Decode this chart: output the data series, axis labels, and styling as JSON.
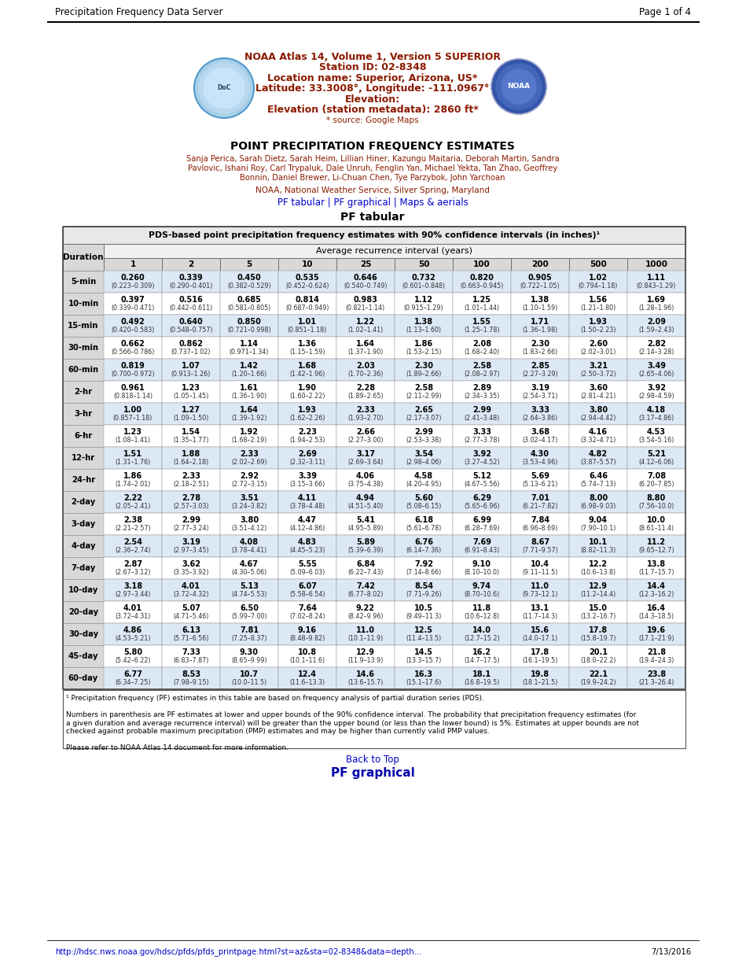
{
  "header_left": "Precipitation Frequency Data Server",
  "header_right": "Page 1 of 4",
  "title_line1": "NOAA Atlas 14, Volume 1, Version 5 SUPERIOR",
  "title_line2": "Station ID: 02-8348",
  "title_line3": "Location name: Superior, Arizona, US*",
  "title_line4": "Latitude: 33.3008°, Longitude: -111.0967°",
  "title_line5": "Elevation:",
  "title_line6": "Elevation (station metadata): 2860 ft*",
  "title_line7": "* source: Google Maps",
  "main_title": "POINT PRECIPITATION FREQUENCY ESTIMATES",
  "authors_line1": "Sanja Perica, Sarah Dietz, Sarah Heim, Lillian Hiner, Kazungu Maitaria, Deborah Martin, Sandra",
  "authors_line2": "Pavlovic, Ishani Roy, Carl Trypaluk, Dale Unruh, Fenglin Yan, Michael Yekta, Tan Zhao, Geoffrey",
  "authors_line3": "Bonnin, Daniel Brewer, Li-Chuan Chen, Tye Parzybok, John Yarchoan",
  "agency": "NOAA, National Weather Service, Silver Spring, Maryland",
  "section_title": "PF tabular",
  "table_title": "PDS-based point precipitation frequency estimates with 90% confidence intervals (in inches)¹",
  "ari_label": "Average recurrence interval (years)",
  "duration_label": "Duration",
  "col_headers": [
    "1",
    "2",
    "5",
    "10",
    "25",
    "50",
    "100",
    "200",
    "500",
    "1000"
  ],
  "duration_labels": [
    "5-min",
    "10-min",
    "15-min",
    "30-min",
    "60-min",
    "2-hr",
    "3-hr",
    "6-hr",
    "12-hr",
    "24-hr",
    "2-day",
    "3-day",
    "4-day",
    "7-day",
    "10-day",
    "20-day",
    "30-day",
    "45-day",
    "60-day"
  ],
  "table_data": [
    [
      "0.260\n(0.223–0.309)",
      "0.339\n(0.290–0.401)",
      "0.450\n(0.382–0.529)",
      "0.535\n(0.452–0.624)",
      "0.646\n(0.540–0.749)",
      "0.732\n(0.601–0.848)",
      "0.820\n(0.663–0.945)",
      "0.905\n(0.722–1.05)",
      "1.02\n(0.794–1.18)",
      "1.11\n(0.843–1.29)"
    ],
    [
      "0.397\n(0.339–0.471)",
      "0.516\n(0.442–0.611)",
      "0.685\n(0.581–0.805)",
      "0.814\n(0.687–0.949)",
      "0.983\n(0.821–1.14)",
      "1.12\n(0.915–1.29)",
      "1.25\n(1.01–1.44)",
      "1.38\n(1.10–1.59)",
      "1.56\n(1.21–1.80)",
      "1.69\n(1.28–1.96)"
    ],
    [
      "0.492\n(0.420–0.583)",
      "0.640\n(0.548–0.757)",
      "0.850\n(0.721–0.998)",
      "1.01\n(0.851–1.18)",
      "1.22\n(1.02–1.41)",
      "1.38\n(1.13–1.60)",
      "1.55\n(1.25–1.78)",
      "1.71\n(1.36–1.98)",
      "1.93\n(1.50–2.23)",
      "2.09\n(1.59–2.43)"
    ],
    [
      "0.662\n(0.566–0.786)",
      "0.862\n(0.737–1.02)",
      "1.14\n(0.971–1.34)",
      "1.36\n(1.15–1.59)",
      "1.64\n(1.37–1.90)",
      "1.86\n(1.53–2.15)",
      "2.08\n(1.68–2.40)",
      "2.30\n(1.83–2.66)",
      "2.60\n(2.02–3.01)",
      "2.82\n(2.14–3.28)"
    ],
    [
      "0.819\n(0.700–0.972)",
      "1.07\n(0.913–1.26)",
      "1.42\n(1.20–1.66)",
      "1.68\n(1.42–1.96)",
      "2.03\n(1.70–2.36)",
      "2.30\n(1.89–2.66)",
      "2.58\n(2.08–2.97)",
      "2.85\n(2.27–3.29)",
      "3.21\n(2.50–3.72)",
      "3.49\n(2.65–4.06)"
    ],
    [
      "0.961\n(0.818–1.14)",
      "1.23\n(1.05–1.45)",
      "1.61\n(1.36–1.90)",
      "1.90\n(1.60–2.22)",
      "2.28\n(1.89–2.65)",
      "2.58\n(2.11–2.99)",
      "2.89\n(2.34–3.35)",
      "3.19\n(2.54–3.71)",
      "3.60\n(2.81–4.21)",
      "3.92\n(2.98–4.59)"
    ],
    [
      "1.00\n(0.857–1.18)",
      "1.27\n(1.09–1.50)",
      "1.64\n(1.39–1.92)",
      "1.93\n(1.62–2.26)",
      "2.33\n(1.93–2.70)",
      "2.65\n(2.17–3.07)",
      "2.99\n(2.41–3.48)",
      "3.33\n(2.64–3.86)",
      "3.80\n(2.94–4.42)",
      "4.18\n(3.17–4.86)"
    ],
    [
      "1.23\n(1.08–1.41)",
      "1.54\n(1.35–1.77)",
      "1.92\n(1.68–2.19)",
      "2.23\n(1.94–2.53)",
      "2.66\n(2.27–3.00)",
      "2.99\n(2.53–3.38)",
      "3.33\n(2.77–3.78)",
      "3.68\n(3.02–4.17)",
      "4.16\n(3.32–4.71)",
      "4.53\n(3.54–5.16)"
    ],
    [
      "1.51\n(1.31–1.76)",
      "1.88\n(1.64–2.18)",
      "2.33\n(2.02–2.69)",
      "2.69\n(2.32–3.11)",
      "3.17\n(2.69–3.64)",
      "3.54\n(2.98–4.06)",
      "3.92\n(3.27–4.52)",
      "4.30\n(3.53–4.96)",
      "4.82\n(3.87–5.57)",
      "5.21\n(4.12–6.06)"
    ],
    [
      "1.86\n(1.74–2.01)",
      "2.33\n(2.18–2.51)",
      "2.92\n(2.72–3.15)",
      "3.39\n(3.15–3.66)",
      "4.06\n(3.75–4.38)",
      "4.58\n(4.20–4.95)",
      "5.12\n(4.67–5.56)",
      "5.69\n(5.13–6.21)",
      "6.46\n(5.74–7.13)",
      "7.08\n(6.20–7.85)"
    ],
    [
      "2.22\n(2.05–2.41)",
      "2.78\n(2.57–3.03)",
      "3.51\n(3.24–3.82)",
      "4.11\n(3.78–4.48)",
      "4.94\n(4.51–5.40)",
      "5.60\n(5.08–6.15)",
      "6.29\n(5.65–6.96)",
      "7.01\n(6.21–7.82)",
      "8.00\n(6.98–9.03)",
      "8.80\n(7.56–10.0)"
    ],
    [
      "2.38\n(2.21–2.57)",
      "2.99\n(2.77–3.24)",
      "3.80\n(3.51–4.12)",
      "4.47\n(4.12–4.86)",
      "5.41\n(4.95–5.89)",
      "6.18\n(5.61–6.78)",
      "6.99\n(6.28–7.69)",
      "7.84\n(6.96–8.69)",
      "9.04\n(7.90–10.1)",
      "10.0\n(8.61–11.4)"
    ],
    [
      "2.54\n(2.36–2.74)",
      "3.19\n(2.97–3.45)",
      "4.08\n(3.78–4.41)",
      "4.83\n(4.45–5.23)",
      "5.89\n(5.39–6.39)",
      "6.76\n(6.14–7.36)",
      "7.69\n(6.91–8.43)",
      "8.67\n(7.71–9.57)",
      "10.1\n(8.82–11.3)",
      "11.2\n(9.65–12.7)"
    ],
    [
      "2.87\n(2.67–3.12)",
      "3.62\n(3.35–3.92)",
      "4.67\n(4.30–5.06)",
      "5.55\n(5.09–6.03)",
      "6.84\n(6.22–7.43)",
      "7.92\n(7.14–8.66)",
      "9.10\n(8.10–10.0)",
      "10.4\n(9.11–11.5)",
      "12.2\n(10.6–13.8)",
      "13.8\n(11.7–15.7)"
    ],
    [
      "3.18\n(2.97–3.44)",
      "4.01\n(3.72–4.32)",
      "5.13\n(4.74–5.53)",
      "6.07\n(5.58–6.54)",
      "7.42\n(6.77–8.02)",
      "8.54\n(7.71–9.26)",
      "9.74\n(8.70–10.6)",
      "11.0\n(9.73–12.1)",
      "12.9\n(11.2–14.4)",
      "14.4\n(12.3–16.2)"
    ],
    [
      "4.01\n(3.72–4.31)",
      "5.07\n(4.71–5.46)",
      "6.50\n(5.99–7.00)",
      "7.64\n(7.02–8.24)",
      "9.22\n(8.42–9.96)",
      "10.5\n(9.49–11.3)",
      "11.8\n(10.6–12.8)",
      "13.1\n(11.7–14.3)",
      "15.0\n(13.2–16.7)",
      "16.4\n(14.3–18.5)"
    ],
    [
      "4.86\n(4.53–5.21)",
      "6.13\n(5.71–6.56)",
      "7.81\n(7.25–8.37)",
      "9.16\n(8.48–9.82)",
      "11.0\n(10.1–11.9)",
      "12.5\n(11.4–13.5)",
      "14.0\n(12.7–15.2)",
      "15.6\n(14.0–17.1)",
      "17.8\n(15.8–19.7)",
      "19.6\n(17.1–21.9)"
    ],
    [
      "5.80\n(5.42–6.22)",
      "7.33\n(6.83–7.87)",
      "9.30\n(8.65–9.99)",
      "10.8\n(10.1–11.6)",
      "12.9\n(11.9–13.9)",
      "14.5\n(13.3–15.7)",
      "16.2\n(14.7–17.5)",
      "17.8\n(16.1–19.5)",
      "20.1\n(18.0–22.2)",
      "21.8\n(19.4–24.3)"
    ],
    [
      "6.77\n(6.34–7.25)",
      "8.53\n(7.98–9.15)",
      "10.7\n(10.0–11.5)",
      "12.4\n(11.6–13.3)",
      "14.6\n(13.6–15.7)",
      "16.3\n(15.1–17.6)",
      "18.1\n(16.8–19.5)",
      "19.8\n(18.1–21.5)",
      "22.1\n(19.9–24.2)",
      "23.8\n(21.3–26.4)"
    ]
  ],
  "footnote1": "¹ Precipitation frequency (PF) estimates in this table are based on frequency analysis of partial duration series (PDS).",
  "footnote2a": "Numbers in parenthesis are PF estimates at lower and upper bounds of the 90% confidence interval. The probability that precipitation frequency estimates (for",
  "footnote2b": "a given duration and average recurrence interval) will be greater than the upper bound (or less than the lower bound) is 5%. Estimates at upper bounds are not",
  "footnote2c": "checked against probable maximum precipitation (PMP) estimates and may be higher than currently valid PMP values.",
  "footnote3": "Please refer to NOAA Atlas 14 document for more information.",
  "back_to_top": "Back to Top",
  "section2_title": "PF graphical",
  "footer_url": "http://hdsc.nws.noaa.gov/hdsc/pfds/pfds_printpage.html?st=az&sta=02-8348&data=depth...",
  "footer_date": "7/13/2016"
}
